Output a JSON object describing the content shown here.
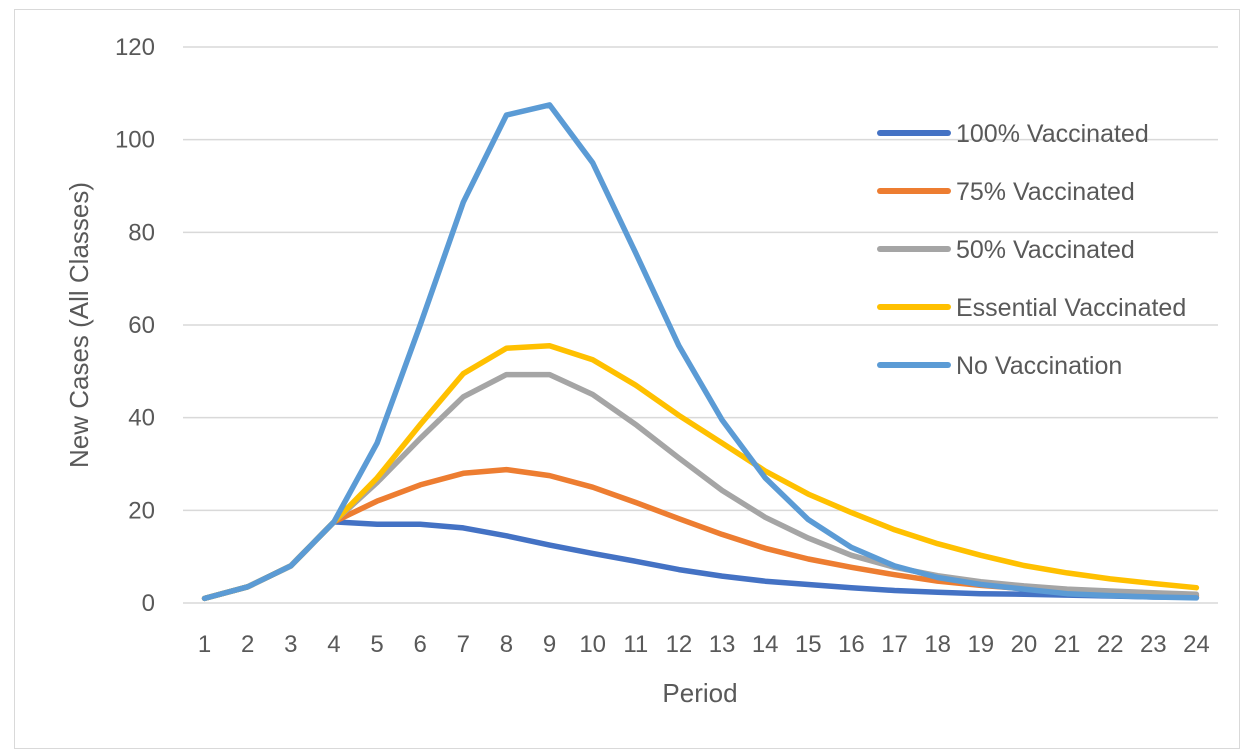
{
  "chart_data": {
    "type": "line",
    "title": "",
    "xlabel": "Period",
    "ylabel": "New Cases (All Classes)",
    "ylim": [
      0,
      120
    ],
    "yticks": [
      0,
      20,
      40,
      60,
      80,
      100,
      120
    ],
    "grid": true,
    "legend_position": "right",
    "x": [
      "1",
      "2",
      "3",
      "4",
      "5",
      "6",
      "7",
      "8",
      "9",
      "10",
      "11",
      "12",
      "13",
      "14",
      "15",
      "16",
      "17",
      "18",
      "19",
      "20",
      "21",
      "22",
      "23",
      "24"
    ],
    "series": [
      {
        "name": "100% Vaccinated",
        "color": "#4472c4",
        "values": [
          1,
          3.5,
          8,
          17.5,
          17,
          17,
          16.2,
          14.5,
          12.5,
          10.7,
          9,
          7.2,
          5.8,
          4.7,
          4,
          3.3,
          2.7,
          2.3,
          2,
          1.9,
          1.7,
          1.5,
          1.3,
          1.2
        ]
      },
      {
        "name": "75% Vaccinated",
        "color": "#ed7d31",
        "values": [
          1,
          3.5,
          8,
          17.5,
          22,
          25.5,
          28,
          28.8,
          27.5,
          25,
          21.7,
          18.2,
          14.8,
          11.8,
          9.5,
          7.7,
          6.1,
          4.7,
          3.8,
          3.1,
          2.5,
          2.1,
          1.8,
          1.6
        ]
      },
      {
        "name": "50% Vaccinated",
        "color": "#a5a5a5",
        "values": [
          1,
          3.5,
          8,
          17.5,
          26,
          35.5,
          44.5,
          49.3,
          49.3,
          45,
          38.5,
          31.3,
          24.3,
          18.5,
          14,
          10.3,
          7.7,
          5.9,
          4.6,
          3.7,
          3,
          2.6,
          2.2,
          1.9
        ]
      },
      {
        "name": "Essential Vaccinated",
        "color": "#ffc000",
        "values": [
          1,
          3.5,
          8,
          17.5,
          27,
          38.5,
          49.5,
          55,
          55.5,
          52.5,
          47,
          40.5,
          34.5,
          28.5,
          23.5,
          19.5,
          15.8,
          12.8,
          10.3,
          8.1,
          6.5,
          5.2,
          4.2,
          3.3
        ]
      },
      {
        "name": "No Vaccination",
        "color": "#5b9bd5",
        "values": [
          1,
          3.5,
          8,
          17.5,
          34.5,
          60,
          86.5,
          105.3,
          107.5,
          95,
          75.5,
          55.5,
          39.5,
          27,
          18,
          12,
          8,
          5.5,
          4,
          3,
          2,
          1.6,
          1.3,
          1.1
        ]
      }
    ]
  }
}
